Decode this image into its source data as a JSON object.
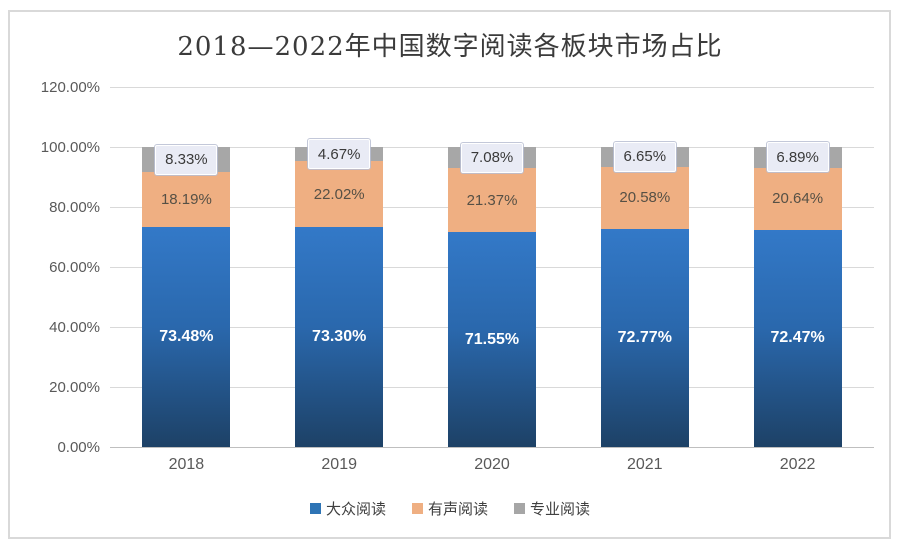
{
  "title": "2018—2022年中国数字阅读各板块市场占比",
  "chart_data": {
    "type": "bar",
    "stacked": true,
    "title": "2018—2022年中国数字阅读各板块市场占比",
    "categories": [
      "2018",
      "2019",
      "2020",
      "2021",
      "2022"
    ],
    "series": [
      {
        "name": "大众阅读",
        "sem": "mass-reading",
        "values": [
          73.48,
          73.3,
          71.55,
          72.77,
          72.47
        ],
        "labels": [
          "73.48%",
          "73.30%",
          "71.55%",
          "72.77%",
          "72.47%"
        ],
        "color_top": "#3379c8",
        "color_bottom": "#1d4166",
        "legend_color": "#2e74b5"
      },
      {
        "name": "有声阅读",
        "sem": "audio-reading",
        "values": [
          18.19,
          22.02,
          21.37,
          20.58,
          20.64
        ],
        "labels": [
          "18.19%",
          "22.02%",
          "21.37%",
          "20.58%",
          "20.64%"
        ],
        "color": "#efaf82",
        "legend_color": "#efaf82"
      },
      {
        "name": "专业阅读",
        "sem": "professional-reading",
        "values": [
          8.33,
          4.67,
          7.08,
          6.65,
          6.89
        ],
        "labels": [
          "8.33%",
          "4.67%",
          "7.08%",
          "6.65%",
          "6.89%"
        ],
        "color": "#a7a7a7",
        "legend_color": "#a6a6a6"
      }
    ],
    "xlabel": "",
    "ylabel": "",
    "y_axis": {
      "min": 0,
      "max": 120,
      "step": 20,
      "tick_labels": [
        "0.00%",
        "20.00%",
        "40.00%",
        "60.00%",
        "80.00%",
        "100.00%",
        "120.00%"
      ]
    },
    "grid": true,
    "legend": [
      "大众阅读",
      "有声阅读",
      "专业阅读"
    ],
    "legend_position": "bottom"
  },
  "styles": {
    "frame_border_color": "#d9d9d9",
    "grid_color": "#d9d9d9",
    "axis_line_color": "#bfbfbf",
    "tick_text_color": "#595959",
    "cap_label_box_bg": "#e9ebf5"
  }
}
